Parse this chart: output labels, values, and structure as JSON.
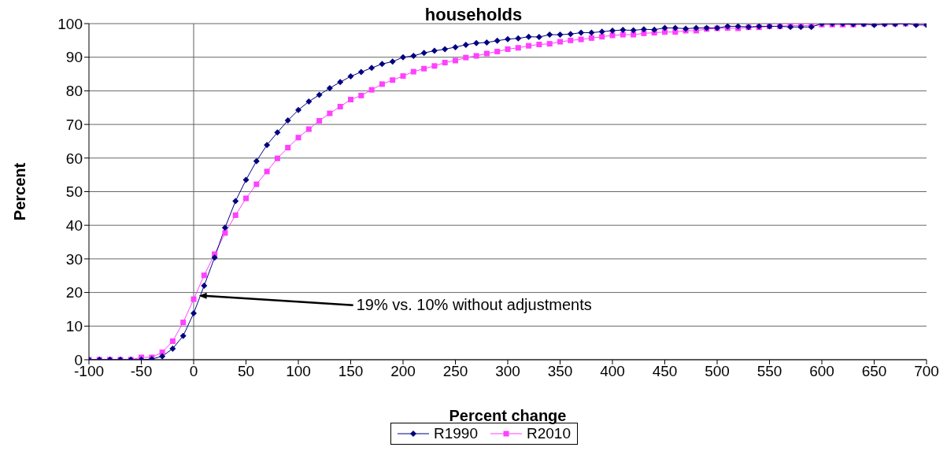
{
  "chart_data": {
    "type": "line",
    "title": "households",
    "xlabel": "Percent change",
    "ylabel": "Percent",
    "x": [
      -100,
      -90,
      -80,
      -70,
      -60,
      -50,
      -40,
      -30,
      -20,
      -10,
      0,
      10,
      20,
      30,
      40,
      50,
      60,
      70,
      80,
      90,
      100,
      110,
      120,
      130,
      140,
      150,
      160,
      170,
      180,
      190,
      200,
      210,
      220,
      230,
      240,
      250,
      260,
      270,
      280,
      290,
      300,
      310,
      320,
      330,
      340,
      350,
      360,
      370,
      380,
      390,
      400,
      410,
      420,
      430,
      440,
      450,
      460,
      470,
      480,
      490,
      500,
      510,
      520,
      530,
      540,
      550,
      560,
      570,
      580,
      590,
      600,
      610,
      620,
      630,
      640,
      650,
      660,
      670,
      680,
      690,
      700
    ],
    "series": [
      {
        "name": "R1990",
        "color": "#000080",
        "marker": "diamond",
        "values": [
          0,
          0,
          0,
          0,
          0,
          0,
          0.2,
          1,
          3.3,
          7.1,
          13.8,
          22,
          30.4,
          39.3,
          47.2,
          53.5,
          59.1,
          63.9,
          67.6,
          71.2,
          74.3,
          76.8,
          78.8,
          80.8,
          82.6,
          84.3,
          85.6,
          86.8,
          88,
          88.7,
          90,
          90.4,
          91.3,
          91.9,
          92.4,
          93,
          93.7,
          94.2,
          94.4,
          94.9,
          95.4,
          95.6,
          96.1,
          96,
          96.7,
          96.7,
          96.9,
          97.3,
          97.3,
          97.6,
          97.9,
          98.1,
          98,
          98.3,
          98.2,
          98.7,
          98.7,
          98.5,
          98.7,
          98.7,
          98.7,
          99.2,
          99.2,
          99,
          99.2,
          99.2,
          99.2,
          99,
          99,
          99,
          100,
          100,
          100,
          99.8,
          99.8,
          99.6,
          99.8,
          99.8,
          100,
          99.6,
          99.6
        ]
      },
      {
        "name": "R2010",
        "color": "#ff40ff",
        "marker": "square",
        "values": [
          0,
          0,
          0,
          0,
          0,
          0.7,
          0.7,
          2.2,
          5.5,
          11.1,
          18,
          25.1,
          31.4,
          37.7,
          43,
          48,
          52.2,
          56,
          59.9,
          63.1,
          66.1,
          68.6,
          71.1,
          73.3,
          75.3,
          77.4,
          78.6,
          80.3,
          82,
          83.2,
          84.4,
          85.7,
          86.6,
          87.4,
          88.4,
          89,
          89.9,
          90.4,
          91.1,
          91.7,
          92.4,
          92.8,
          93.4,
          93.8,
          94,
          94.6,
          95,
          95.3,
          95.7,
          96.1,
          96.5,
          96.7,
          96.7,
          97.1,
          97.3,
          97.5,
          97.5,
          97.9,
          97.9,
          98.4,
          98.6,
          98.7,
          98.6,
          98.9,
          98.9,
          99.2,
          99.2,
          99.4,
          99.4,
          99.4,
          99.7,
          99.7,
          99.7,
          99.7,
          99.9,
          100,
          100,
          100,
          100,
          100,
          100
        ]
      }
    ],
    "xlim": [
      -100,
      700
    ],
    "xticks": [
      -100,
      -50,
      0,
      50,
      100,
      150,
      200,
      250,
      300,
      350,
      400,
      450,
      500,
      550,
      600,
      650,
      700
    ],
    "ylim": [
      0,
      100
    ],
    "yticks": [
      0,
      10,
      20,
      30,
      40,
      50,
      60,
      70,
      80,
      90,
      100
    ],
    "grid": "y",
    "legend": "bottom",
    "ref_lines": [
      {
        "axis": "x",
        "value": 0,
        "color": "#606060"
      }
    ],
    "annotations": [
      {
        "text": "19% vs. 10% without adjustments",
        "x": 5,
        "y": 19
      }
    ]
  }
}
